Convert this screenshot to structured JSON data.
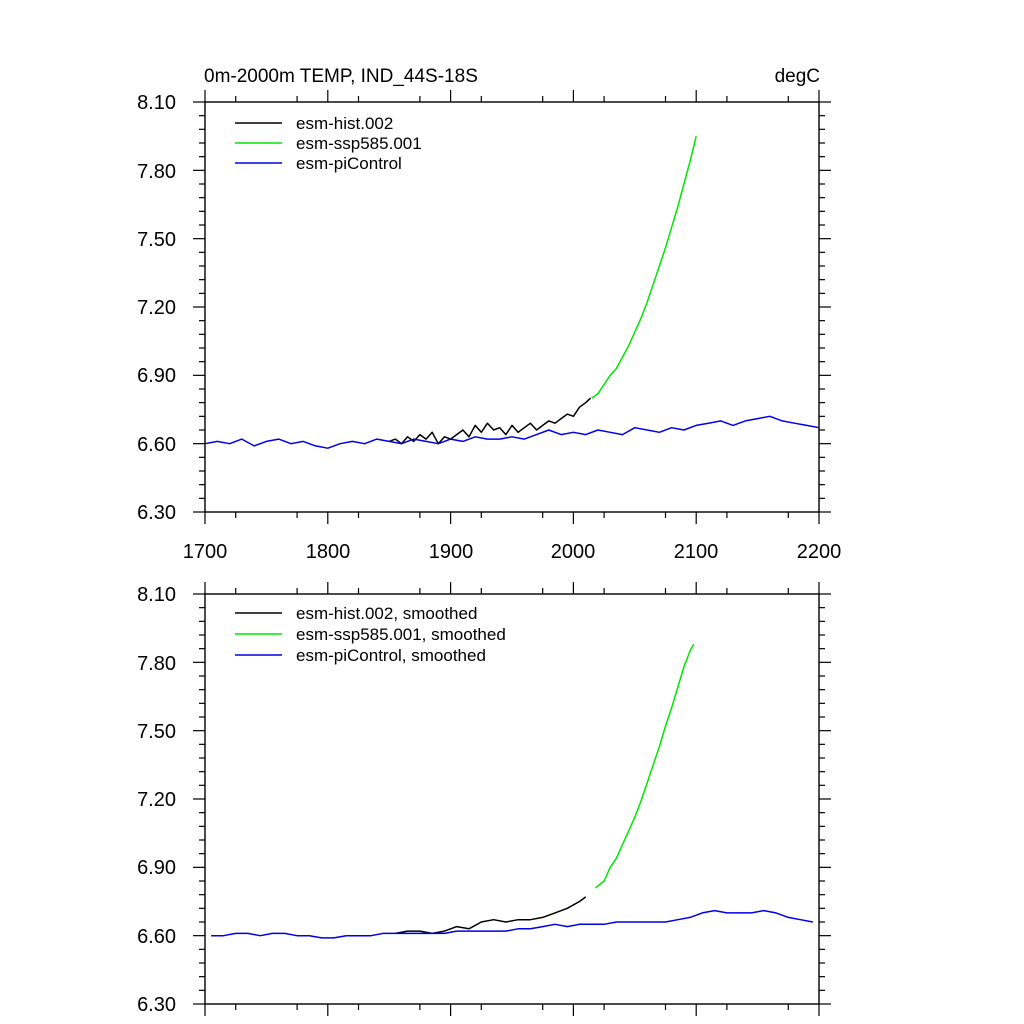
{
  "figure": {
    "title_left": "0m-2000m TEMP, IND_44S-18S",
    "title_right": "degC"
  },
  "colors": {
    "esm-hist.002": "#000000",
    "esm-ssp585.001": "#00e600",
    "esm-piControl": "#0000e6"
  },
  "chart_data": [
    {
      "type": "line",
      "panel": "top",
      "xlim": [
        1700,
        2200
      ],
      "ylim": [
        6.3,
        8.1
      ],
      "x_ticks": [
        1700,
        1800,
        1900,
        2000,
        2100,
        2200
      ],
      "x_tick_labels": [
        "1700",
        "1800",
        "1900",
        "2000",
        "2100",
        "2200"
      ],
      "y_ticks": [
        6.3,
        6.6,
        6.9,
        7.2,
        7.5,
        7.8,
        8.1
      ],
      "y_tick_labels": [
        "6.30",
        "6.60",
        "6.90",
        "7.20",
        "7.50",
        "7.80",
        "8.10"
      ],
      "legend_position": "top-left",
      "series": [
        {
          "name": "esm-hist.002",
          "color_key": "esm-hist.002",
          "x": [
            1850,
            1855,
            1860,
            1865,
            1870,
            1875,
            1880,
            1885,
            1890,
            1895,
            1900,
            1905,
            1910,
            1915,
            1920,
            1925,
            1930,
            1935,
            1940,
            1945,
            1950,
            1955,
            1960,
            1965,
            1970,
            1975,
            1980,
            1985,
            1990,
            1995,
            2000,
            2005,
            2010,
            2014
          ],
          "y": [
            6.61,
            6.62,
            6.6,
            6.63,
            6.61,
            6.64,
            6.62,
            6.65,
            6.6,
            6.63,
            6.62,
            6.64,
            6.66,
            6.63,
            6.68,
            6.65,
            6.69,
            6.66,
            6.67,
            6.64,
            6.68,
            6.65,
            6.67,
            6.69,
            6.66,
            6.68,
            6.7,
            6.69,
            6.71,
            6.73,
            6.72,
            6.76,
            6.78,
            6.8
          ]
        },
        {
          "name": "esm-ssp585.001",
          "color_key": "esm-ssp585.001",
          "x": [
            2015,
            2020,
            2025,
            2030,
            2035,
            2040,
            2045,
            2050,
            2055,
            2060,
            2065,
            2070,
            2075,
            2080,
            2085,
            2090,
            2095,
            2100
          ],
          "y": [
            6.8,
            6.82,
            6.86,
            6.9,
            6.93,
            6.98,
            7.03,
            7.09,
            7.15,
            7.22,
            7.3,
            7.38,
            7.46,
            7.55,
            7.64,
            7.74,
            7.84,
            7.95
          ]
        },
        {
          "name": "esm-piControl",
          "color_key": "esm-piControl",
          "x": [
            1700,
            1710,
            1720,
            1730,
            1740,
            1750,
            1760,
            1770,
            1780,
            1790,
            1800,
            1810,
            1820,
            1830,
            1840,
            1850,
            1860,
            1870,
            1880,
            1890,
            1900,
            1910,
            1920,
            1930,
            1940,
            1950,
            1960,
            1970,
            1980,
            1990,
            2000,
            2010,
            2020,
            2030,
            2040,
            2050,
            2060,
            2070,
            2080,
            2090,
            2100,
            2110,
            2120,
            2130,
            2140,
            2150,
            2160,
            2170,
            2180,
            2190,
            2200
          ],
          "y": [
            6.6,
            6.61,
            6.6,
            6.62,
            6.59,
            6.61,
            6.62,
            6.6,
            6.61,
            6.59,
            6.58,
            6.6,
            6.61,
            6.6,
            6.62,
            6.61,
            6.6,
            6.62,
            6.61,
            6.6,
            6.62,
            6.61,
            6.63,
            6.62,
            6.62,
            6.63,
            6.62,
            6.64,
            6.66,
            6.64,
            6.65,
            6.64,
            6.66,
            6.65,
            6.64,
            6.67,
            6.66,
            6.65,
            6.67,
            6.66,
            6.68,
            6.69,
            6.7,
            6.68,
            6.7,
            6.71,
            6.72,
            6.7,
            6.69,
            6.68,
            6.67
          ]
        }
      ]
    },
    {
      "type": "line",
      "panel": "bottom",
      "xlim": [
        1700,
        2200
      ],
      "ylim": [
        6.3,
        8.1
      ],
      "x_ticks": [
        1700,
        1800,
        1900,
        2000,
        2100,
        2200
      ],
      "y_ticks": [
        6.3,
        6.6,
        6.9,
        7.2,
        7.5,
        7.8,
        8.1
      ],
      "y_tick_labels": [
        "6.30",
        "6.60",
        "6.90",
        "7.20",
        "7.50",
        "7.80",
        "8.10"
      ],
      "legend_position": "top-left",
      "series": [
        {
          "name": "esm-hist.002, smoothed",
          "color_key": "esm-hist.002",
          "x": [
            1855,
            1865,
            1875,
            1885,
            1895,
            1905,
            1915,
            1925,
            1935,
            1945,
            1955,
            1965,
            1975,
            1985,
            1995,
            2005,
            2010
          ],
          "y": [
            6.61,
            6.62,
            6.62,
            6.61,
            6.62,
            6.64,
            6.63,
            6.66,
            6.67,
            6.66,
            6.67,
            6.67,
            6.68,
            6.7,
            6.72,
            6.75,
            6.77
          ]
        },
        {
          "name": "esm-ssp585.001, smoothed",
          "color_key": "esm-ssp585.001",
          "x": [
            2018,
            2025,
            2030,
            2035,
            2040,
            2045,
            2050,
            2055,
            2060,
            2065,
            2070,
            2075,
            2080,
            2085,
            2090,
            2095,
            2098
          ],
          "y": [
            6.81,
            6.84,
            6.9,
            6.94,
            7.0,
            7.06,
            7.12,
            7.19,
            7.27,
            7.35,
            7.43,
            7.52,
            7.6,
            7.69,
            7.78,
            7.85,
            7.88
          ]
        },
        {
          "name": "esm-piControl, smoothed",
          "color_key": "esm-piControl",
          "x": [
            1705,
            1715,
            1725,
            1735,
            1745,
            1755,
            1765,
            1775,
            1785,
            1795,
            1805,
            1815,
            1825,
            1835,
            1845,
            1855,
            1865,
            1875,
            1885,
            1895,
            1905,
            1915,
            1925,
            1935,
            1945,
            1955,
            1965,
            1975,
            1985,
            1995,
            2005,
            2015,
            2025,
            2035,
            2045,
            2055,
            2065,
            2075,
            2085,
            2095,
            2105,
            2115,
            2125,
            2135,
            2145,
            2155,
            2165,
            2175,
            2185,
            2195
          ],
          "y": [
            6.6,
            6.6,
            6.61,
            6.61,
            6.6,
            6.61,
            6.61,
            6.6,
            6.6,
            6.59,
            6.59,
            6.6,
            6.6,
            6.6,
            6.61,
            6.61,
            6.61,
            6.61,
            6.61,
            6.61,
            6.62,
            6.62,
            6.62,
            6.62,
            6.62,
            6.63,
            6.63,
            6.64,
            6.65,
            6.64,
            6.65,
            6.65,
            6.65,
            6.66,
            6.66,
            6.66,
            6.66,
            6.66,
            6.67,
            6.68,
            6.7,
            6.71,
            6.7,
            6.7,
            6.7,
            6.71,
            6.7,
            6.68,
            6.67,
            6.66
          ]
        }
      ]
    }
  ]
}
